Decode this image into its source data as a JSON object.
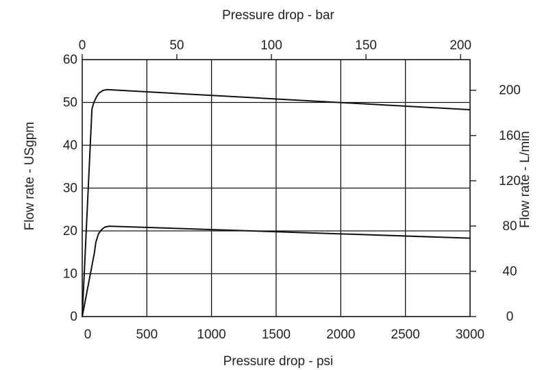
{
  "chart_data": {
    "type": "line",
    "title": "",
    "xlabel": "Pressure  drop - psi",
    "x2label": "Pressure drop - bar",
    "ylabel": "Flow rate - USgpm",
    "y2label": "Flow rate - L/min",
    "xlim": [
      0,
      3000
    ],
    "ylim": [
      0,
      60
    ],
    "x2lim": [
      0,
      205
    ],
    "y2lim": [
      0,
      227.1
    ],
    "grid": true,
    "x_ticks": [
      "0",
      "500",
      "1000",
      "1500",
      "2000",
      "2500",
      "3000"
    ],
    "x_tick_values": [
      0,
      500,
      1000,
      1500,
      2000,
      2500,
      3000
    ],
    "y_ticks": [
      "0",
      "10",
      "20",
      "30",
      "40",
      "50",
      "60"
    ],
    "y_tick_values": [
      0,
      10,
      20,
      30,
      40,
      50,
      60
    ],
    "x2_ticks": [
      "0",
      "50",
      "100",
      "150",
      "200"
    ],
    "x2_tick_values": [
      0,
      50,
      100,
      150,
      200
    ],
    "y2_ticks": [
      "0",
      "40",
      "80",
      "120",
      "160",
      "200"
    ],
    "y2_tick_values": [
      0,
      40,
      80,
      120,
      160,
      200
    ],
    "series": [
      {
        "x": [
          0,
          75,
          90,
          110,
          130,
          160,
          190,
          3000
        ],
        "y": [
          0,
          48.5,
          50.0,
          51.3,
          52.2,
          52.8,
          53.0,
          48.3
        ]
      },
      {
        "x": [
          0,
          95,
          105,
          125,
          150,
          175,
          210,
          3000
        ],
        "y": [
          0,
          15.0,
          17.3,
          19.3,
          20.3,
          20.9,
          21.1,
          18.3
        ]
      }
    ]
  }
}
